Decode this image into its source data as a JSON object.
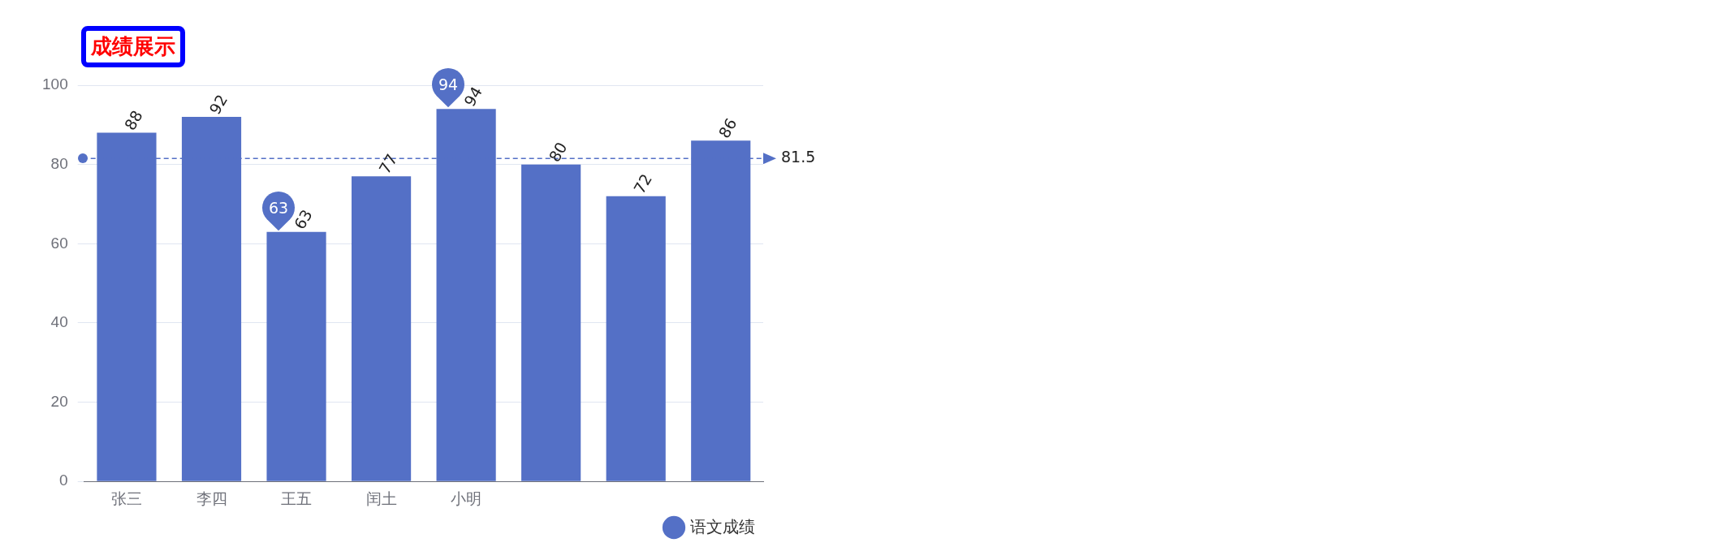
{
  "chart_data": {
    "type": "bar",
    "title": "成绩展示",
    "categories": [
      "张三",
      "李四",
      "王五",
      "闰土",
      "小明",
      null,
      null,
      null
    ],
    "series": [
      {
        "name": "语文成绩",
        "color": "#5470c6",
        "values": [
          88,
          92,
          63,
          77,
          94,
          80,
          72,
          86
        ]
      }
    ],
    "ylim": [
      0,
      100
    ],
    "yticks": [
      0,
      20,
      40,
      60,
      80,
      100
    ],
    "grid": "y",
    "legend": "bottom right",
    "data_labels": true,
    "ref_lines": [
      {
        "axis": "y",
        "value": 81.5,
        "label": "81.5",
        "color": "#5470c6",
        "line_style": "dashed"
      }
    ],
    "annotations": [
      {
        "text": "94",
        "x": "小明",
        "y": 94
      },
      {
        "text": "63",
        "x": "王五",
        "y": 63
      }
    ]
  }
}
